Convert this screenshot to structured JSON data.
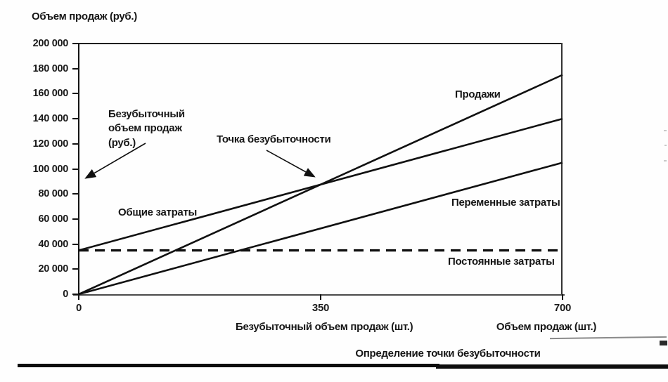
{
  "figure": {
    "caption": "Определение точки безубыточности"
  },
  "y_axis": {
    "title": "Объем продаж (руб.)",
    "tick_labels": [
      "200 000",
      "180 000",
      "160 000",
      "140 000",
      "120 000",
      "100 000",
      "80 000",
      "60 000",
      "40 000",
      "20 000",
      "0"
    ]
  },
  "x_axis": {
    "tick_labels": [
      "0",
      "350",
      "700"
    ],
    "left_label": "Безубыточный объем продаж (шт.)",
    "right_label": "Объем продаж (шт.)"
  },
  "annotations": {
    "breakeven_revenue_label": "Безубыточный объем продаж (руб.)",
    "breakeven_point_label": "Точка безубыточности"
  },
  "series_labels": {
    "sales": "Продажи",
    "total_costs": "Общие затраты",
    "variable_costs": "Переменные затраты",
    "fixed_costs": "Постоянные затраты"
  },
  "colors": {
    "line": "#111111",
    "text": "#161616",
    "bottom_axis": "#4a4a4a",
    "rule_bar": "#0d0d0d"
  },
  "chart_data": {
    "type": "line",
    "title": "Определение точки безубыточности",
    "xlabel": "Объем продаж (шт.)",
    "ylabel": "Объем продаж (руб.)",
    "xlim": [
      0,
      700
    ],
    "ylim": [
      0,
      200000
    ],
    "x_ticks": [
      0,
      350,
      700
    ],
    "y_ticks": [
      0,
      20000,
      40000,
      60000,
      80000,
      100000,
      120000,
      140000,
      160000,
      180000,
      200000
    ],
    "grid": false,
    "legend": "inline-labels",
    "series": [
      {
        "id": "sales",
        "name": "Продажи",
        "x": [
          0,
          700
        ],
        "y": [
          0,
          175000
        ],
        "line_style": "solid"
      },
      {
        "id": "total-costs",
        "name": "Общие затраты",
        "x": [
          0,
          700
        ],
        "y": [
          35000,
          140000
        ],
        "line_style": "solid"
      },
      {
        "id": "variable-costs",
        "name": "Переменные затраты",
        "x": [
          0,
          700
        ],
        "y": [
          0,
          105000
        ],
        "line_style": "solid"
      },
      {
        "id": "fixed-costs",
        "name": "Постоянные затраты",
        "x": [
          0,
          700
        ],
        "y": [
          35000,
          35000
        ],
        "line_style": "dashed"
      }
    ],
    "break_even_point": {
      "units": 350,
      "revenue_rub": 87500
    }
  }
}
